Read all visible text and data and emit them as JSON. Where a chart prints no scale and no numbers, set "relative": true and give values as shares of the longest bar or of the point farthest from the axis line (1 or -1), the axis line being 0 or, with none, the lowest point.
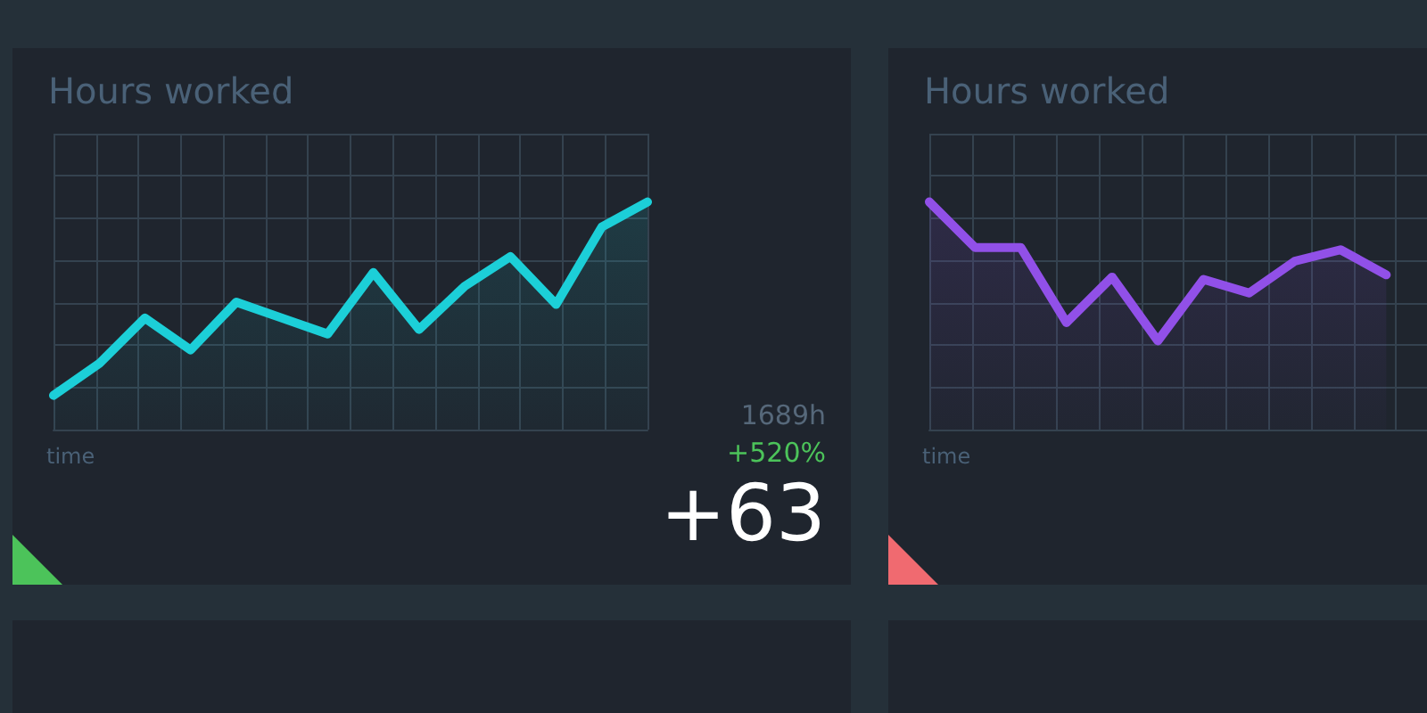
{
  "chart_data": [
    {
      "type": "area",
      "title": "Hours worked",
      "xlabel": "time",
      "relative": true,
      "grid": true,
      "categories": [
        null,
        null,
        null,
        null,
        null,
        null,
        null,
        null,
        null,
        null,
        null,
        null,
        null,
        null
      ],
      "series": [
        {
          "color": "#1ccfd8",
          "values": [
            0.15,
            0.29,
            0.49,
            0.35,
            0.56,
            0.49,
            0.42,
            0.69,
            0.44,
            0.63,
            0.76,
            0.55,
            0.89,
            1
          ]
        }
      ],
      "annotations": [
        "1689h",
        "+520%",
        "+63"
      ]
    },
    {
      "type": "area",
      "title": "Hours worked",
      "xlabel": "time",
      "relative": true,
      "grid": true,
      "categories": [
        null,
        null,
        null,
        null,
        null,
        null,
        null,
        null,
        null,
        null,
        null
      ],
      "series": [
        {
          "color": "#9150e8",
          "values": [
            1,
            0.8,
            0.8,
            0.47,
            0.67,
            0.39,
            0.66,
            0.6,
            0.74,
            0.79,
            0.68
          ]
        }
      ]
    }
  ]
}
